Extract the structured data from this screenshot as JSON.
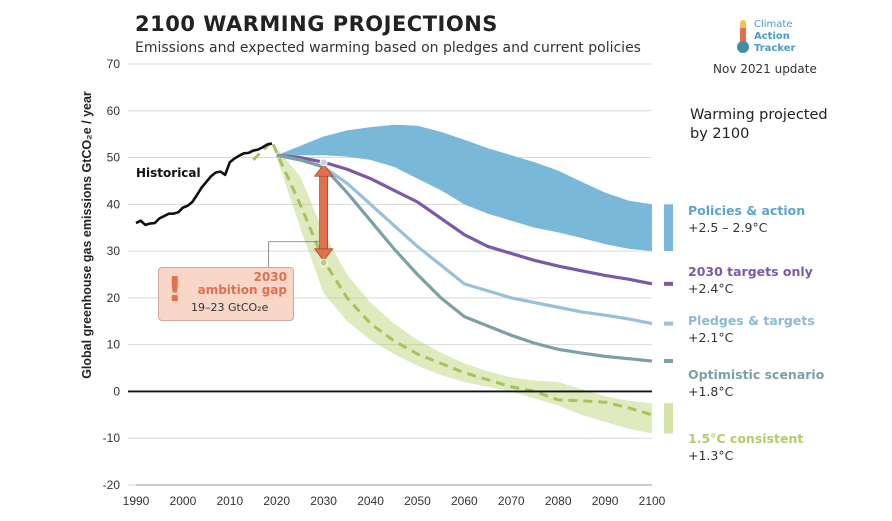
{
  "header": {
    "title": "2100 WARMING PROJECTIONS",
    "subtitle": "Emissions and expected warming based on pledges and current policies",
    "logo_text": [
      "Climate",
      "Action",
      "Tracker"
    ],
    "update": "Nov 2021 update"
  },
  "panel": {
    "heading": [
      "Warming projected",
      "by 2100"
    ]
  },
  "ambition": {
    "line1": "2030",
    "line2": "ambition gap",
    "line3": "19–23  GtCO₂e",
    "icon": "exclamation-icon"
  },
  "colors": {
    "policies": "#79b8d9",
    "targets2030": "#7a5aa8",
    "pledges": "#98c0d9",
    "optimistic": "#7d9fa6",
    "consistent": "#b9d070",
    "historical": "#111111",
    "gap": "#e2704f"
  },
  "chart_data": {
    "type": "line",
    "title": "2100 WARMING PROJECTIONS",
    "subtitle": "Emissions and expected warming based on pledges and current policies",
    "xlabel": "",
    "ylabel": "Global greenhouse gas emissions  GtCO₂e / year",
    "xlim": [
      1990,
      2100
    ],
    "ylim": [
      -20,
      70
    ],
    "x_ticks": [
      1990,
      2000,
      2010,
      2020,
      2030,
      2040,
      2050,
      2060,
      2070,
      2080,
      2090,
      2100
    ],
    "y_ticks": [
      -20,
      -10,
      0,
      10,
      20,
      30,
      40,
      50,
      60,
      70
    ],
    "grid": "horizontal",
    "historical": {
      "name": "Historical",
      "x": [
        1990,
        1991,
        1992,
        1993,
        1994,
        1995,
        1996,
        1997,
        1998,
        1999,
        2000,
        2001,
        2002,
        2003,
        2004,
        2005,
        2006,
        2007,
        2008,
        2009,
        2010,
        2011,
        2012,
        2013,
        2014,
        2015,
        2016,
        2017,
        2018,
        2019
      ],
      "y": [
        36,
        36.5,
        35.6,
        35.9,
        36,
        37,
        37.5,
        38,
        38,
        38.3,
        39.3,
        39.7,
        40.5,
        42,
        43.6,
        44.8,
        46,
        46.8,
        47,
        46.3,
        49,
        49.8,
        50.4,
        50.9,
        51,
        51.5,
        51.7,
        52.2,
        52.8,
        53
      ]
    },
    "bands": [
      {
        "key": "policies",
        "name": "Policies & action",
        "warming": "+2.5 – 2.9°C",
        "x": [
          2020,
          2025,
          2030,
          2035,
          2040,
          2045,
          2050,
          2055,
          2060,
          2065,
          2070,
          2075,
          2080,
          2085,
          2090,
          2095,
          2100
        ],
        "upper": [
          50.5,
          52.5,
          54.5,
          55.8,
          56.5,
          57,
          56.8,
          55.5,
          53.8,
          52,
          50.5,
          49,
          47.2,
          44.8,
          42.5,
          40.8,
          40
        ],
        "lower": [
          50,
          50.5,
          50.5,
          50.2,
          49.5,
          48,
          45.5,
          43,
          40,
          38,
          36.5,
          35,
          34,
          32.8,
          31.5,
          30.5,
          30
        ]
      },
      {
        "key": "consistent",
        "name": "1.5°C consistent",
        "warming": "+1.3°C",
        "x": [
          2020,
          2025,
          2030,
          2035,
          2040,
          2045,
          2050,
          2055,
          2060,
          2065,
          2070,
          2075,
          2080,
          2085,
          2090,
          2095,
          2100
        ],
        "upper": [
          52,
          46,
          34,
          25,
          19,
          14.5,
          11,
          8.3,
          6,
          4.3,
          3,
          2.3,
          2,
          0.5,
          -1,
          -2,
          -2.5
        ],
        "lower": [
          50,
          35,
          21,
          15,
          11,
          8,
          5.5,
          3.5,
          2,
          1,
          0,
          -1.5,
          -3,
          -5,
          -6.5,
          -8,
          -9
        ]
      }
    ],
    "series": [
      {
        "key": "targets2030",
        "name": "2030 targets only",
        "warming": "+2.4°C",
        "x": [
          2020,
          2025,
          2030,
          2035,
          2040,
          2045,
          2050,
          2055,
          2060,
          2065,
          2070,
          2075,
          2080,
          2085,
          2090,
          2095,
          2100
        ],
        "y": [
          50.5,
          50,
          49,
          47.5,
          45.5,
          43,
          40.5,
          37,
          33.5,
          31,
          29.5,
          28,
          26.8,
          25.8,
          24.8,
          24,
          23
        ]
      },
      {
        "key": "pledges",
        "name": "Pledges & targets",
        "warming": "+2.1°C",
        "x": [
          2020,
          2025,
          2030,
          2035,
          2040,
          2045,
          2050,
          2055,
          2060,
          2065,
          2070,
          2075,
          2080,
          2085,
          2090,
          2095,
          2100
        ],
        "y": [
          50.5,
          49.5,
          48,
          44.5,
          40,
          35.5,
          31,
          27,
          23,
          21.5,
          20,
          19,
          18,
          17,
          16.3,
          15.5,
          14.5
        ]
      },
      {
        "key": "optimistic",
        "name": "Optimistic scenario",
        "warming": "+1.8°C",
        "x": [
          2020,
          2025,
          2030,
          2035,
          2040,
          2045,
          2050,
          2055,
          2060,
          2065,
          2070,
          2075,
          2080,
          2085,
          2090,
          2095,
          2100
        ],
        "y": [
          50.5,
          49.5,
          48,
          42.5,
          36.5,
          30.5,
          25,
          20,
          16,
          14,
          12,
          10.3,
          9,
          8.2,
          7.5,
          7,
          6.5
        ]
      },
      {
        "key": "consistent",
        "name": "1.5°C consistent",
        "style": "dashed",
        "x": [
          2015,
          2019,
          2020,
          2025,
          2030,
          2035,
          2040,
          2045,
          2050,
          2055,
          2060,
          2065,
          2070,
          2075,
          2080,
          2085,
          2090,
          2095,
          2100
        ],
        "y": [
          49.5,
          53.5,
          51,
          40,
          28,
          20,
          14.5,
          10.8,
          8,
          6,
          4,
          2.5,
          1,
          0,
          -1.8,
          -2,
          -2.3,
          -3.5,
          -5
        ]
      }
    ],
    "ambition_gap": {
      "year": 2030,
      "from": 27.5,
      "to": 49,
      "label": "2030 ambition gap",
      "range": "19–23  GtCO₂e"
    }
  }
}
